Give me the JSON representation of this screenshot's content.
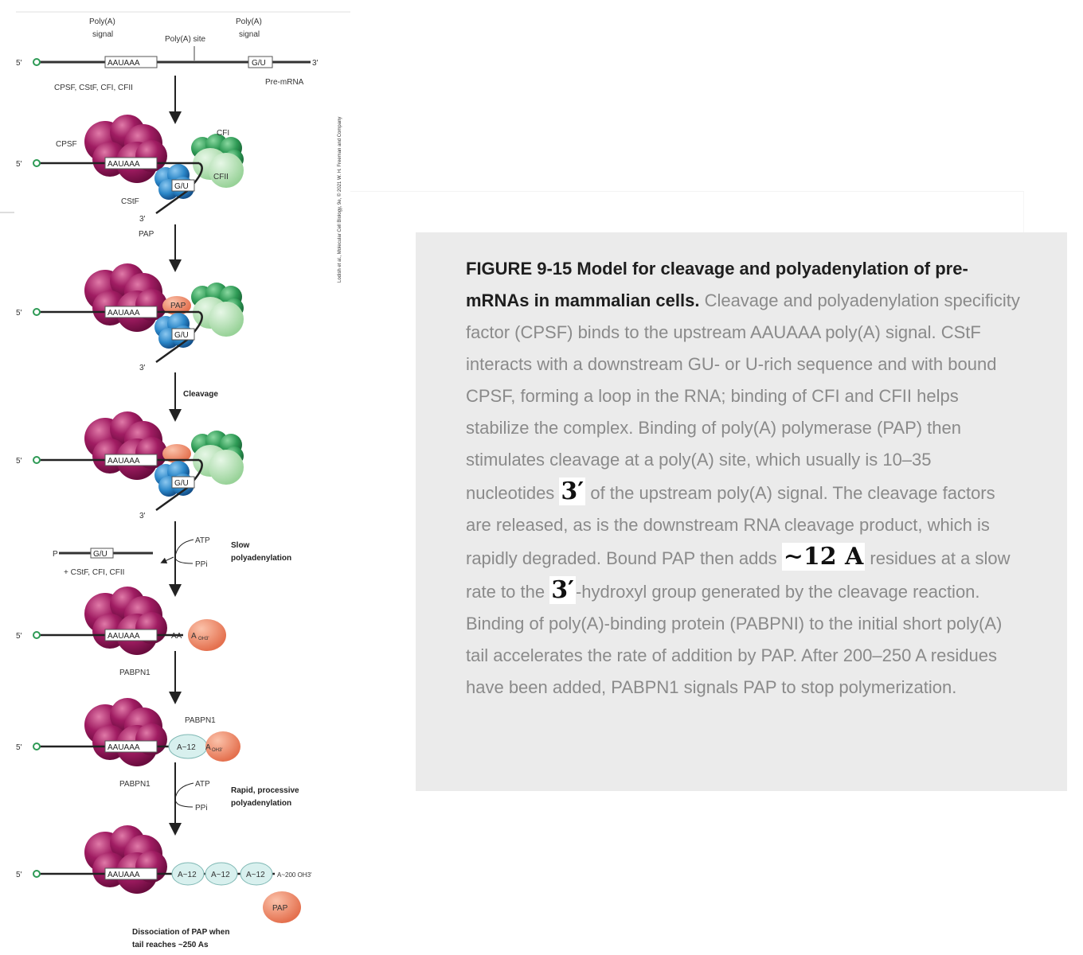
{
  "diagram": {
    "five_prime": "5'",
    "three_prime": "3'",
    "polya_signal": [
      "Poly(A)",
      "signal"
    ],
    "polya_site": "Poly(A) site",
    "gu_signal": [
      "Poly(A)",
      "signal"
    ],
    "aauaaa": "AAUAAA",
    "gu": "G/U",
    "pre_mrna": "Pre-mRNA",
    "factors_in": "CPSF, CStF, CFI, CFII",
    "cpsf": "CPSF",
    "cfi": "CFI",
    "cfii": "CFII",
    "cstf": "CStF",
    "pap": "PAP",
    "cleavage": "Cleavage",
    "atp": "ATP",
    "ppi": "PPi",
    "slow": [
      "Slow",
      "polyadenylation"
    ],
    "released": "+ CStF, CFI, CFII",
    "p": "P",
    "aa_oh": "AA",
    "a_oh": "A",
    "oh3": "OH3'",
    "pabpn1": "PABPN1",
    "a12": "A~12",
    "rapid": [
      "Rapid, processive",
      "polyadenylation"
    ],
    "a_tail": "A~200 OH3'",
    "dissociation": [
      "Dissociation of PAP when",
      "tail reaches ~250 As"
    ],
    "credit": "Lodish et al., Molecular Cell Biology, 9e, © 2021 W. H. Freeman and Company"
  },
  "caption": {
    "title": "FIGURE 9-15 Model for cleavage and polyadenylation of pre-mRNAs in mammalian cells.",
    "t1": " Cleavage and polyadenylation specificity factor (CPSF) binds to the upstream AAUAAA poly(A) signal. CStF interacts with a downstream GU- or U-rich sequence and with bound CPSF, forming a loop in the RNA; binding of CFI and CFII helps stabilize the complex. Binding of poly(A) polymerase (PAP) then stimulates cleavage at a poly(A) site, which usually is 10–35 nucleotides ",
    "m1": "3′",
    "t2": " of the upstream poly(A) signal. The cleavage factors are released, as is the downstream RNA cleavage product, which is rapidly degraded. Bound PAP then adds ",
    "m2": "∼12 A",
    "t3": " residues at a slow rate to the ",
    "m3": "3′",
    "t4": "-hydroxyl group generated by the cleavage reaction. Binding of poly(A)-binding protein (PABPNI) to the initial short poly(A) tail accelerates the rate of addition by PAP. After 200–250 A residues have been added, PABPN1 signals PAP to stop polymerization."
  },
  "colors": {
    "cpsf": "#a01c62",
    "cstf": "#2a86c8",
    "cfi": "#2e9a55",
    "cfii": "#a8dca8",
    "pap": "#f08a6a",
    "pabpn1": "#d8f0ee",
    "caption_bg": "#ebebeb"
  }
}
